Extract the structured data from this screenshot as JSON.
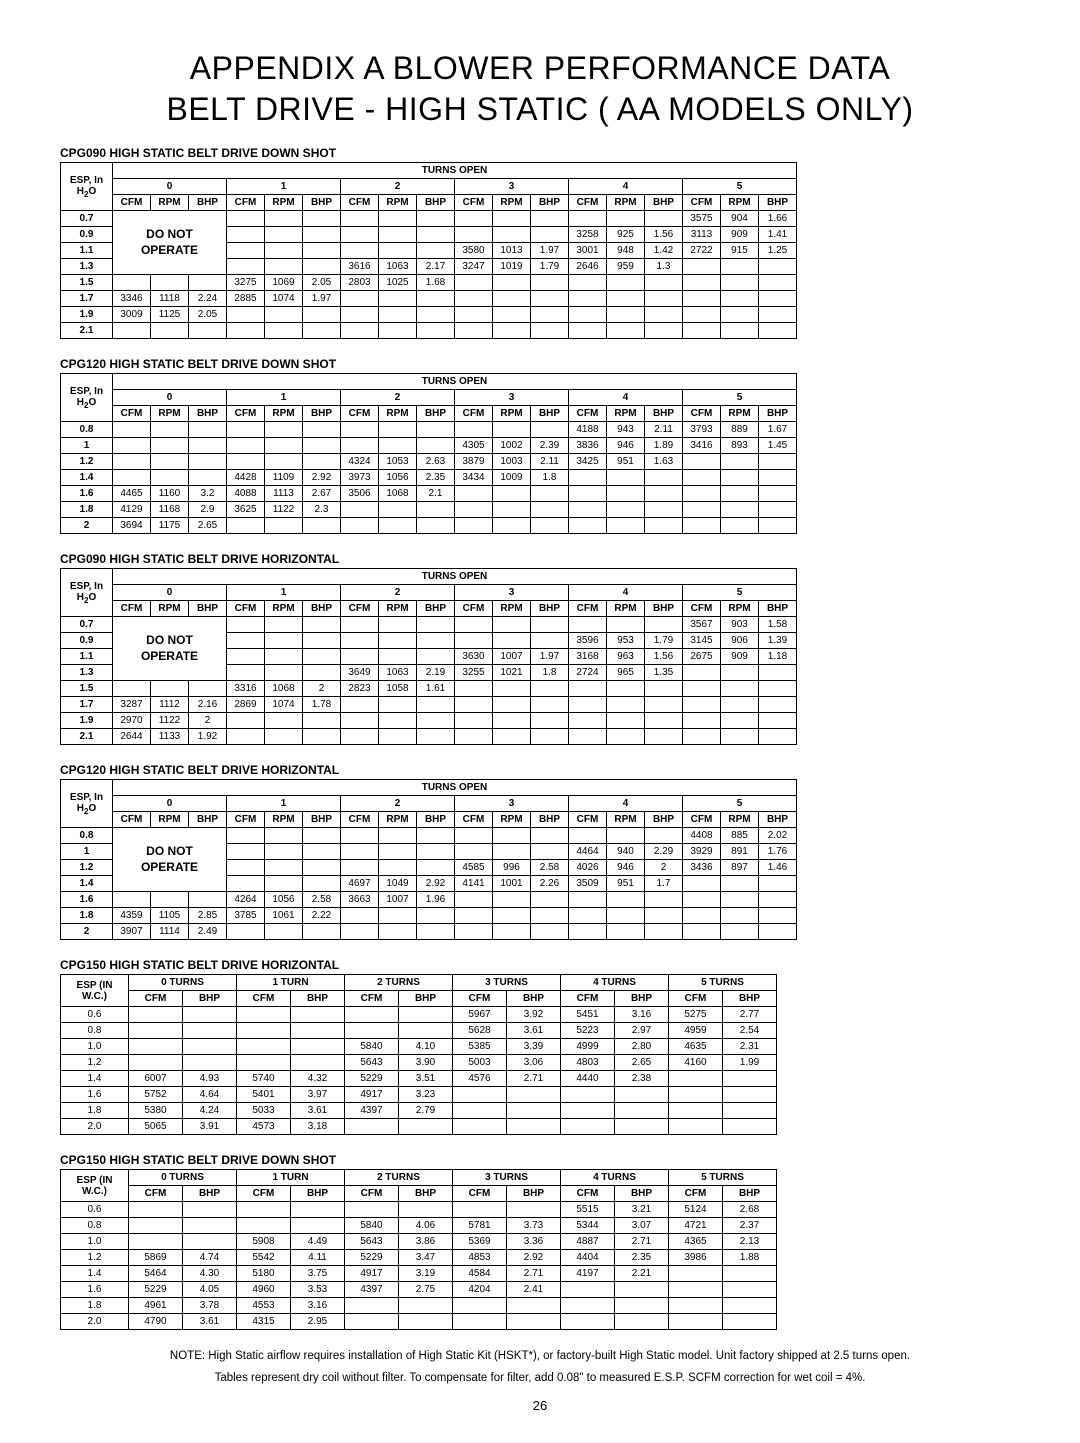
{
  "title1": "APPENDIX A BLOWER PERFORMANCE DATA",
  "title2": "BELT DRIVE - HIGH STATIC ( AA  MODELS ONLY)",
  "esp_label": "ESP, In H₂O",
  "turns_open_label": "TURNS OPEN",
  "donot": "DO NOT",
  "operate": "OPERATE",
  "subcols": [
    "CFM",
    "RPM",
    "BHP"
  ],
  "turns_nums": [
    "0",
    "1",
    "2",
    "3",
    "4",
    "5"
  ],
  "turns_labels": [
    "0 TURNS",
    "1 TURN",
    "2 TURNS",
    "3 TURNS",
    "4 TURNS",
    "5 TURNS"
  ],
  "esp_wc_label": "ESP (IN W.C.)",
  "cfm": "CFM",
  "bhp": "BHP",
  "tables_a": [
    {
      "title": "CPG090 HIGH STATIC BELT DRIVE DOWN SHOT",
      "donot_rowspan": 4,
      "esp": [
        "0.7",
        "0.9",
        "1.1",
        "1.3",
        "1.5",
        "1.7",
        "1.9",
        "2.1"
      ],
      "rows": [
        [
          "",
          "",
          "",
          "",
          "",
          "",
          "",
          "",
          "",
          "",
          "",
          "",
          "",
          "",
          "",
          "3575",
          "904",
          "1.66"
        ],
        [
          "",
          "",
          "",
          "",
          "",
          "",
          "",
          "",
          "",
          "",
          "",
          "",
          "3258",
          "925",
          "1.56",
          "3113",
          "909",
          "1.41"
        ],
        [
          "",
          "",
          "",
          "",
          "",
          "",
          "",
          "",
          "",
          "3580",
          "1013",
          "1.97",
          "3001",
          "948",
          "1.42",
          "2722",
          "915",
          "1.25"
        ],
        [
          "",
          "",
          "",
          "",
          "",
          "",
          "3616",
          "1063",
          "2.17",
          "3247",
          "1019",
          "1.79",
          "2646",
          "959",
          "1.3",
          "",
          "",
          ""
        ],
        [
          "",
          "",
          "",
          "3275",
          "1069",
          "2.05",
          "2803",
          "1025",
          "1.68",
          "",
          "",
          "",
          "",
          "",
          ""
        ],
        [
          "3346",
          "1118",
          "2.24",
          "2885",
          "1074",
          "1.97",
          "",
          "",
          "",
          "",
          "",
          "",
          "",
          "",
          ""
        ],
        [
          "3009",
          "1125",
          "2.05",
          "",
          "",
          "",
          "",
          "",
          "",
          "",
          "",
          "",
          "",
          "",
          ""
        ],
        [
          "",
          "",
          "",
          "",
          "",
          "",
          "",
          "",
          "",
          "",
          "",
          "",
          "",
          "",
          ""
        ]
      ]
    },
    {
      "title": "CPG120 HIGH STATIC BELT DRIVE DOWN SHOT",
      "donot_rowspan": 0,
      "esp": [
        "0.8",
        "1",
        "1.2",
        "1.4",
        "1.6",
        "1.8",
        "2"
      ],
      "rows": [
        [
          "",
          "",
          "",
          "",
          "",
          "",
          "",
          "",
          "",
          "",
          "",
          "",
          "4188",
          "943",
          "2.11",
          "3793",
          "889",
          "1.67"
        ],
        [
          "",
          "",
          "",
          "",
          "",
          "",
          "",
          "",
          "",
          "4305",
          "1002",
          "2.39",
          "3836",
          "946",
          "1.89",
          "3416",
          "893",
          "1.45"
        ],
        [
          "",
          "",
          "",
          "",
          "",
          "",
          "4324",
          "1053",
          "2.63",
          "3879",
          "1003",
          "2.11",
          "3425",
          "951",
          "1.63",
          "",
          "",
          ""
        ],
        [
          "",
          "",
          "",
          "4428",
          "1109",
          "2.92",
          "3973",
          "1056",
          "2.35",
          "3434",
          "1009",
          "1.8",
          "",
          "",
          "",
          "",
          "",
          ""
        ],
        [
          "4465",
          "1160",
          "3.2",
          "4088",
          "1113",
          "2.67",
          "3506",
          "1068",
          "2.1",
          "",
          "",
          "",
          "",
          "",
          "",
          "",
          "",
          ""
        ],
        [
          "4129",
          "1168",
          "2.9",
          "3625",
          "1122",
          "2.3",
          "",
          "",
          "",
          "",
          "",
          "",
          "",
          "",
          "",
          "",
          "",
          ""
        ],
        [
          "3694",
          "1175",
          "2.65",
          "",
          "",
          "",
          "",
          "",
          "",
          "",
          "",
          "",
          "",
          "",
          "",
          "",
          "",
          ""
        ]
      ]
    },
    {
      "title": "CPG090 HIGH STATIC BELT DRIVE HORIZONTAL",
      "donot_rowspan": 4,
      "esp": [
        "0.7",
        "0.9",
        "1.1",
        "1.3",
        "1.5",
        "1.7",
        "1.9",
        "2.1"
      ],
      "rows": [
        [
          "",
          "",
          "",
          "",
          "",
          "",
          "",
          "",
          "",
          "",
          "",
          "",
          "",
          "",
          "",
          "3567",
          "903",
          "1.58"
        ],
        [
          "",
          "",
          "",
          "",
          "",
          "",
          "",
          "",
          "",
          "",
          "",
          "",
          "3596",
          "953",
          "1.79",
          "3145",
          "906",
          "1.39"
        ],
        [
          "",
          "",
          "",
          "",
          "",
          "",
          "",
          "",
          "",
          "3630",
          "1007",
          "1.97",
          "3168",
          "963",
          "1.56",
          "2675",
          "909",
          "1.18"
        ],
        [
          "",
          "",
          "",
          "",
          "",
          "",
          "3649",
          "1063",
          "2.19",
          "3255",
          "1021",
          "1.8",
          "2724",
          "965",
          "1.35",
          "",
          "",
          ""
        ],
        [
          "",
          "",
          "",
          "3316",
          "1068",
          "2",
          "2823",
          "1058",
          "1.61",
          "",
          "",
          "",
          "",
          "",
          ""
        ],
        [
          "3287",
          "1112",
          "2.16",
          "2869",
          "1074",
          "1.78",
          "",
          "",
          "",
          "",
          "",
          "",
          "",
          "",
          ""
        ],
        [
          "2970",
          "1122",
          "2",
          "",
          "",
          "",
          "",
          "",
          "",
          "",
          "",
          "",
          "",
          "",
          ""
        ],
        [
          "2644",
          "1133",
          "1.92",
          "",
          "",
          "",
          "",
          "",
          "",
          "",
          "",
          "",
          "",
          "",
          ""
        ]
      ]
    },
    {
      "title": "CPG120 HIGH STATIC BELT DRIVE HORIZONTAL",
      "donot_rowspan": 4,
      "esp": [
        "0.8",
        "1",
        "1.2",
        "1.4",
        "1.6",
        "1.8",
        "2"
      ],
      "rows": [
        [
          "",
          "",
          "",
          "",
          "",
          "",
          "",
          "",
          "",
          "",
          "",
          "",
          "",
          "",
          "",
          "4408",
          "885",
          "2.02"
        ],
        [
          "",
          "",
          "",
          "",
          "",
          "",
          "",
          "",
          "",
          "",
          "",
          "",
          "4464",
          "940",
          "2.29",
          "3929",
          "891",
          "1.76"
        ],
        [
          "",
          "",
          "",
          "",
          "",
          "",
          "",
          "",
          "",
          "4585",
          "996",
          "2.58",
          "4026",
          "946",
          "2",
          "3436",
          "897",
          "1.46"
        ],
        [
          "",
          "",
          "",
          "",
          "",
          "",
          "4697",
          "1049",
          "2.92",
          "4141",
          "1001",
          "2.26",
          "3509",
          "951",
          "1.7",
          "",
          "",
          ""
        ],
        [
          "",
          "",
          "",
          "4264",
          "1056",
          "2.58",
          "3663",
          "1007",
          "1.96",
          "",
          "",
          "",
          "",
          "",
          ""
        ],
        [
          "4359",
          "1105",
          "2.85",
          "3785",
          "1061",
          "2.22",
          "",
          "",
          "",
          "",
          "",
          "",
          "",
          "",
          ""
        ],
        [
          "3907",
          "1114",
          "2.49",
          "",
          "",
          "",
          "",
          "",
          "",
          "",
          "",
          "",
          "",
          "",
          ""
        ]
      ]
    }
  ],
  "tables_b": [
    {
      "title": "CPG150 HIGH STATIC BELT DRIVE HORIZONTAL",
      "esp": [
        "0.6",
        "0.8",
        "1.0",
        "1.2",
        "1.4",
        "1.6",
        "1.8",
        "2.0"
      ],
      "rows": [
        [
          "",
          "",
          "",
          "",
          "",
          "",
          "5967",
          "3.92",
          "5451",
          "3.16",
          "5275",
          "2.77"
        ],
        [
          "",
          "",
          "",
          "",
          "",
          "",
          "5628",
          "3.61",
          "5223",
          "2.97",
          "4959",
          "2.54"
        ],
        [
          "",
          "",
          "",
          "",
          "5840",
          "4.10",
          "5385",
          "3.39",
          "4999",
          "2.80",
          "4635",
          "2.31"
        ],
        [
          "",
          "",
          "",
          "",
          "5643",
          "3.90",
          "5003",
          "3.06",
          "4803",
          "2.65",
          "4160",
          "1.99"
        ],
        [
          "6007",
          "4.93",
          "5740",
          "4.32",
          "5229",
          "3.51",
          "4576",
          "2.71",
          "4440",
          "2.38",
          "",
          ""
        ],
        [
          "5752",
          "4.64",
          "5401",
          "3.97",
          "4917",
          "3.23",
          "",
          "",
          "",
          "",
          "",
          ""
        ],
        [
          "5380",
          "4.24",
          "5033",
          "3.61",
          "4397",
          "2.79",
          "",
          "",
          "",
          "",
          "",
          ""
        ],
        [
          "5065",
          "3.91",
          "4573",
          "3.18",
          "",
          "",
          "",
          "",
          "",
          "",
          "",
          ""
        ]
      ]
    },
    {
      "title": "CPG150 HIGH STATIC BELT DRIVE DOWN SHOT",
      "esp": [
        "0.6",
        "0.8",
        "1.0",
        "1.2",
        "1.4",
        "1.6",
        "1.8",
        "2.0"
      ],
      "rows": [
        [
          "",
          "",
          "",
          "",
          "",
          "",
          "",
          "",
          "5515",
          "3.21",
          "5124",
          "2.68"
        ],
        [
          "",
          "",
          "",
          "",
          "5840",
          "4.06",
          "5781",
          "3.73",
          "5344",
          "3.07",
          "4721",
          "2.37"
        ],
        [
          "",
          "",
          "5908",
          "4.49",
          "5643",
          "3.86",
          "5369",
          "3.36",
          "4887",
          "2.71",
          "4365",
          "2.13"
        ],
        [
          "5869",
          "4.74",
          "5542",
          "4.11",
          "5229",
          "3.47",
          "4853",
          "2.92",
          "4404",
          "2.35",
          "3986",
          "1.88"
        ],
        [
          "5464",
          "4.30",
          "5180",
          "3.75",
          "4917",
          "3.19",
          "4584",
          "2.71",
          "4197",
          "2.21",
          "",
          ""
        ],
        [
          "5229",
          "4.05",
          "4960",
          "3.53",
          "4397",
          "2.75",
          "4204",
          "2.41",
          "",
          "",
          "",
          ""
        ],
        [
          "4961",
          "3.78",
          "4553",
          "3.16",
          "",
          "",
          "",
          "",
          "",
          "",
          "",
          ""
        ],
        [
          "4790",
          "3.61",
          "4315",
          "2.95",
          "",
          "",
          "",
          "",
          "",
          "",
          "",
          ""
        ]
      ]
    }
  ],
  "note1": "NOTE: High Static airflow requires installation of High Static Kit (HSKT*), or factory-built High Static model. Unit factory shipped at 2.5 turns open.",
  "note2": "Tables represent dry coil without filter.  To compensate for filter, add 0.08\" to measured E.S.P. SCFM correction for wet coil = 4%.",
  "pagenum": "26"
}
